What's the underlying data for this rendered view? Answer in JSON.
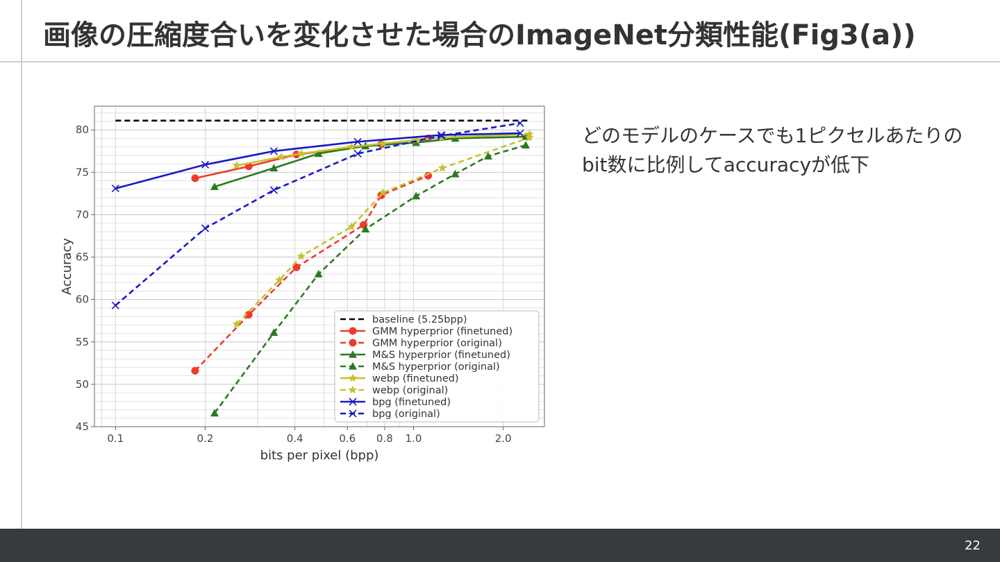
{
  "slide": {
    "title": "画像の圧縮度合いを変化させた場合のImageNet分類性能(Fig3(a))",
    "description": "どのモデルのケースでも1ピクセルあたりのbit数に比例してaccuracyが低下",
    "page_number": "22"
  },
  "chart_data": {
    "type": "line",
    "title": "",
    "xlabel": "bits per pixel (bpp)",
    "ylabel": "Accuracy",
    "xscale": "log",
    "xlim": [
      0.085,
      2.75
    ],
    "ylim": [
      45,
      82.8
    ],
    "xticks": [
      0.1,
      0.2,
      0.4,
      0.6,
      0.8,
      1.0,
      2.0
    ],
    "xtick_labels": [
      "0.1",
      "0.2",
      "0.4",
      "0.6",
      "0.8",
      "1.0",
      "2.0"
    ],
    "yticks": [
      45,
      50,
      55,
      60,
      65,
      70,
      75,
      80
    ],
    "ytick_labels": [
      "45",
      "50",
      "55",
      "60",
      "65",
      "70",
      "75",
      "80"
    ],
    "grid": true,
    "legend_position": "lower-right",
    "series": [
      {
        "name": "baseline (5.25bpp)",
        "color": "#000000",
        "dash": true,
        "marker": "none",
        "x": [
          0.1,
          2.45
        ],
        "y": [
          81.1,
          81.1
        ]
      },
      {
        "name": "GMM hyperprior (finetuned)",
        "color": "#ee3a2c",
        "dash": false,
        "marker": "circle",
        "x": [
          0.185,
          0.28,
          0.405,
          0.78,
          1.12
        ],
        "y": [
          74.3,
          75.7,
          77.1,
          78.3,
          79.0
        ]
      },
      {
        "name": "GMM hyperprior (original)",
        "color": "#ee3a2c",
        "dash": true,
        "marker": "circle",
        "x": [
          0.185,
          0.28,
          0.405,
          0.68,
          0.78,
          1.12
        ],
        "y": [
          51.6,
          58.2,
          63.8,
          68.8,
          72.3,
          74.6
        ]
      },
      {
        "name": "M&S hyperprior (finetuned)",
        "color": "#2a7a20",
        "dash": false,
        "marker": "triangle",
        "x": [
          0.215,
          0.34,
          0.48,
          0.69,
          1.02,
          1.38,
          2.38
        ],
        "y": [
          73.3,
          75.5,
          77.2,
          78.1,
          78.5,
          79.0,
          79.2
        ]
      },
      {
        "name": "M&S hyperprior (original)",
        "color": "#2a7a20",
        "dash": true,
        "marker": "triangle",
        "x": [
          0.215,
          0.34,
          0.48,
          0.69,
          1.02,
          1.38,
          1.78,
          2.38
        ],
        "y": [
          46.6,
          56.1,
          63.0,
          68.3,
          72.2,
          74.8,
          76.9,
          78.2
        ]
      },
      {
        "name": "webp (finetuned)",
        "color": "#c8c030",
        "dash": false,
        "marker": "star",
        "x": [
          0.255,
          0.36,
          0.42,
          0.62,
          0.79,
          1.02,
          1.25,
          2.45
        ],
        "y": [
          75.8,
          76.8,
          77.2,
          78.0,
          78.4,
          78.8,
          79.1,
          79.5
        ]
      },
      {
        "name": "webp (original)",
        "color": "#c8c030",
        "dash": true,
        "marker": "star",
        "x": [
          0.255,
          0.355,
          0.42,
          0.62,
          0.79,
          1.25,
          2.45
        ],
        "y": [
          57.1,
          62.3,
          65.1,
          68.6,
          72.6,
          75.5,
          79.1
        ]
      },
      {
        "name": "bpg (finetuned)",
        "color": "#1818c8",
        "dash": false,
        "marker": "x",
        "x": [
          0.1,
          0.2,
          0.34,
          0.65,
          1.24,
          2.28
        ],
        "y": [
          73.1,
          75.9,
          77.5,
          78.6,
          79.4,
          79.6
        ]
      },
      {
        "name": "bpg (original)",
        "color": "#1818c8",
        "dash": true,
        "marker": "x",
        "x": [
          0.1,
          0.2,
          0.34,
          0.65,
          1.24,
          2.28
        ],
        "y": [
          59.3,
          68.4,
          72.9,
          77.2,
          79.3,
          80.8
        ]
      }
    ]
  }
}
